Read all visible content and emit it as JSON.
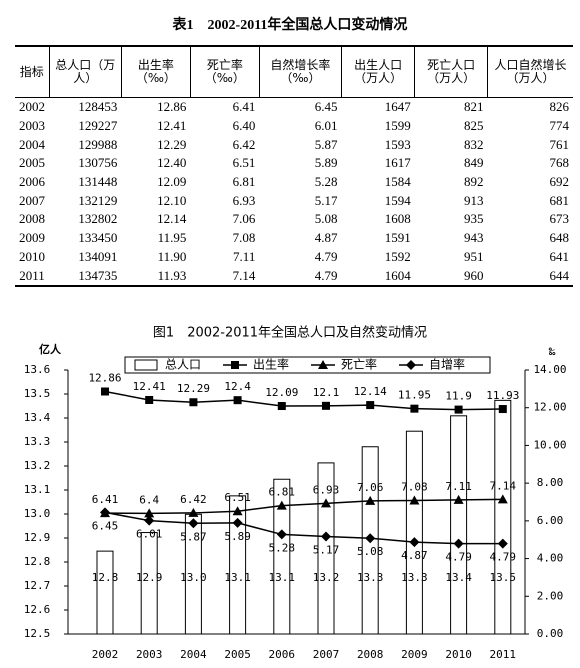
{
  "table": {
    "title": "表1　2002-2011年全国总人口变动情况",
    "headers": [
      "指标",
      "总人口（万人）",
      "出生率（‰）",
      "死亡率（‰）",
      "自然增长率（‰）",
      "出生人口（万人）",
      "死亡人口（万人）",
      "人口自然增长（万人）"
    ],
    "rows": [
      [
        "2002",
        "128453",
        "12.86",
        "6.41",
        "6.45",
        "1647",
        "821",
        "826"
      ],
      [
        "2003",
        "129227",
        "12.41",
        "6.40",
        "6.01",
        "1599",
        "825",
        "774"
      ],
      [
        "2004",
        "129988",
        "12.29",
        "6.42",
        "5.87",
        "1593",
        "832",
        "761"
      ],
      [
        "2005",
        "130756",
        "12.40",
        "6.51",
        "5.89",
        "1617",
        "849",
        "768"
      ],
      [
        "2006",
        "131448",
        "12.09",
        "6.81",
        "5.28",
        "1584",
        "892",
        "692"
      ],
      [
        "2007",
        "132129",
        "12.10",
        "6.93",
        "5.17",
        "1594",
        "913",
        "681"
      ],
      [
        "2008",
        "132802",
        "12.14",
        "7.06",
        "5.08",
        "1608",
        "935",
        "673"
      ],
      [
        "2009",
        "133450",
        "11.95",
        "7.08",
        "4.87",
        "1591",
        "943",
        "648"
      ],
      [
        "2010",
        "134091",
        "11.90",
        "7.11",
        "4.79",
        "1592",
        "951",
        "641"
      ],
      [
        "2011",
        "134735",
        "11.93",
        "7.14",
        "4.79",
        "1604",
        "960",
        "644"
      ]
    ]
  },
  "chart_data": {
    "type": "combo",
    "title": "图1　2002-2011年全国总人口及自然变动情况",
    "ylabel": "亿人",
    "y2label": "‰",
    "categories": [
      "2002",
      "2003",
      "2004",
      "2005",
      "2006",
      "2007",
      "2008",
      "2009",
      "2010",
      "2011"
    ],
    "ylim": [
      12.5,
      13.6
    ],
    "yticks": [
      12.5,
      12.6,
      12.7,
      12.8,
      12.9,
      {
        "value": 13,
        "label": "13.0"
      },
      13.1,
      13.2,
      13.3,
      13.4,
      13.5,
      13.6
    ],
    "y2lim": [
      0,
      14
    ],
    "y2ticks": [
      {
        "value": 0,
        "label": "0.00"
      },
      {
        "value": 2,
        "label": "2.00"
      },
      {
        "value": 4,
        "label": "4.00"
      },
      {
        "value": 6,
        "label": "6.00"
      },
      {
        "value": 8,
        "label": "8.00"
      },
      {
        "value": 10,
        "label": "10.00"
      },
      {
        "value": 12,
        "label": "12.00"
      },
      {
        "value": 14,
        "label": "14.00"
      }
    ],
    "series": [
      {
        "name": "总人口",
        "kind": "bar",
        "color": "#ffffff",
        "values": [
          12.8453,
          12.9227,
          12.9988,
          13.0756,
          13.1448,
          13.2129,
          13.2802,
          13.345,
          13.4091,
          13.4735
        ],
        "value_labels": [
          "12.8",
          "12.9",
          "13.0",
          "13.1",
          "13.1",
          "13.2",
          "13.3",
          "13.3",
          "13.4",
          "13.5"
        ]
      },
      {
        "name": "出生率",
        "kind": "line",
        "marker": "square",
        "axis": "y2",
        "color": "#000000",
        "values": [
          12.86,
          12.41,
          12.29,
          12.4,
          12.09,
          12.1,
          12.14,
          11.95,
          11.9,
          11.93
        ]
      },
      {
        "name": "死亡率",
        "kind": "line",
        "marker": "triangle",
        "axis": "y2",
        "color": "#000000",
        "values": [
          6.41,
          6.4,
          6.42,
          6.51,
          6.81,
          6.93,
          7.06,
          7.08,
          7.11,
          7.14
        ]
      },
      {
        "name": "自增率",
        "kind": "line",
        "marker": "diamond",
        "axis": "y2",
        "color": "#000000",
        "values": [
          6.45,
          6.01,
          5.87,
          5.89,
          5.28,
          5.17,
          5.08,
          4.87,
          4.79,
          4.79
        ]
      }
    ]
  }
}
